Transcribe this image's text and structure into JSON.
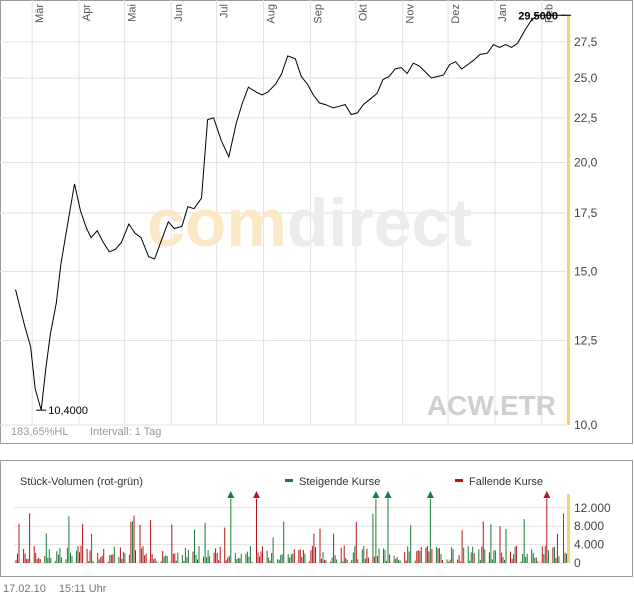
{
  "chart_data": [
    {
      "type": "line",
      "symbol": "ACW.ETR",
      "watermark": "comdirect",
      "y_scale": "log",
      "ylim": [
        10.0,
        29.6
      ],
      "y_ticks": [
        "10,0",
        "12,5",
        "15,0",
        "17,5",
        "20,0",
        "22,5",
        "25,0",
        "27,5"
      ],
      "y_tick_values": [
        10.0,
        12.5,
        15.0,
        17.5,
        20.0,
        22.5,
        25.0,
        27.5
      ],
      "x_months": [
        "Mär",
        "Apr",
        "Mai",
        "Jun",
        "Jul",
        "Aug",
        "Sep",
        "Okt",
        "Nov",
        "Dez",
        "Jan",
        "Feb"
      ],
      "x_range": [
        "2009-02-17",
        "2010-02-17"
      ],
      "min_label": "10,4000",
      "max_label": "29,5000",
      "perf_text": "183,65%HL",
      "interval_text": "Intervall: 1 Tag",
      "series": [
        {
          "x": [
            "2009-02-18",
            "2009-02-24",
            "2009-02-28",
            "2009-03-03",
            "2009-03-07",
            "2009-03-10",
            "2009-03-13",
            "2009-03-17",
            "2009-03-20",
            "2009-03-25",
            "2009-03-29",
            "2009-04-02",
            "2009-04-06",
            "2009-04-09",
            "2009-04-13",
            "2009-04-17",
            "2009-04-21",
            "2009-04-25",
            "2009-04-29",
            "2009-05-04",
            "2009-05-08",
            "2009-05-12",
            "2009-05-17",
            "2009-05-21",
            "2009-05-25",
            "2009-05-30",
            "2009-06-03",
            "2009-06-08",
            "2009-06-12",
            "2009-06-16",
            "2009-06-21",
            "2009-06-25",
            "2009-06-29",
            "2009-07-04",
            "2009-07-09",
            "2009-07-14",
            "2009-07-18",
            "2009-07-22",
            "2009-07-27",
            "2009-07-31",
            "2009-08-04",
            "2009-08-09",
            "2009-08-13",
            "2009-08-17",
            "2009-08-22",
            "2009-08-26",
            "2009-08-30",
            "2009-09-03",
            "2009-09-07",
            "2009-09-11",
            "2009-09-16",
            "2009-09-20",
            "2009-09-24",
            "2009-09-28",
            "2009-10-02",
            "2009-10-06",
            "2009-10-10",
            "2009-10-15",
            "2009-10-19",
            "2009-10-23",
            "2009-10-27",
            "2009-10-31",
            "2009-11-04",
            "2009-11-08",
            "2009-11-12",
            "2009-11-16",
            "2009-11-20",
            "2009-11-24",
            "2009-11-28",
            "2009-12-02",
            "2009-12-06",
            "2009-12-10",
            "2009-12-14",
            "2009-12-18",
            "2009-12-22",
            "2009-12-27",
            "2009-12-31",
            "2010-01-04",
            "2010-01-08",
            "2010-01-12",
            "2010-01-16",
            "2010-01-21",
            "2010-01-25",
            "2010-01-29",
            "2010-02-02",
            "2010-02-06",
            "2010-02-10",
            "2010-02-13",
            "2010-02-16",
            "2010-02-17"
          ],
          "values": [
            14.3,
            13.0,
            12.3,
            11.0,
            10.4,
            11.6,
            12.7,
            13.8,
            15.3,
            17.2,
            18.9,
            17.6,
            16.8,
            16.4,
            16.7,
            16.2,
            15.8,
            15.9,
            16.2,
            17.0,
            16.6,
            16.4,
            15.6,
            15.5,
            16.2,
            17.1,
            16.8,
            16.9,
            17.8,
            17.7,
            18.2,
            22.4,
            22.5,
            21.2,
            20.3,
            22.2,
            23.4,
            24.4,
            24.1,
            23.9,
            24.1,
            24.6,
            25.3,
            26.5,
            26.3,
            25.1,
            24.6,
            23.9,
            23.4,
            23.3,
            23.1,
            23.2,
            23.3,
            22.7,
            22.8,
            23.3,
            23.6,
            24.0,
            24.9,
            25.1,
            25.6,
            25.7,
            25.3,
            26.0,
            25.8,
            25.4,
            25.0,
            25.1,
            25.2,
            25.9,
            26.1,
            25.6,
            25.9,
            26.2,
            26.6,
            26.7,
            27.3,
            27.1,
            27.3,
            27.1,
            27.4,
            28.4,
            29.1,
            29.5,
            29.5,
            29.5,
            29.5,
            29.5,
            29.5,
            29.5
          ]
        }
      ]
    },
    {
      "type": "bar",
      "title": "Stück-Volumen (rot-grün)",
      "legend": [
        {
          "label": "Steigende Kurse",
          "color": "#1c7a3a"
        },
        {
          "label": "Fallende Kurse",
          "color": "#b51818"
        }
      ],
      "y_ticks": [
        "12.000",
        "8.000",
        "4.000",
        "0"
      ],
      "y_tick_values": [
        12000,
        8000,
        4000,
        0
      ],
      "ylim": [
        0,
        15000
      ],
      "x_range": [
        "2009-02-17",
        "2010-02-17"
      ],
      "series": [
        {
          "name": "Steigende Kurse",
          "color": "#1c7a3a"
        },
        {
          "name": "Fallende Kurse",
          "color": "#b51818"
        }
      ]
    }
  ],
  "footer": {
    "date": "17.02.10",
    "time": "15:11 Uhr"
  },
  "colors": {
    "grid": "#e2e2e2",
    "frame": "#9a9a9a",
    "highlight_bar": "#f3d27a",
    "line": "#000000"
  }
}
